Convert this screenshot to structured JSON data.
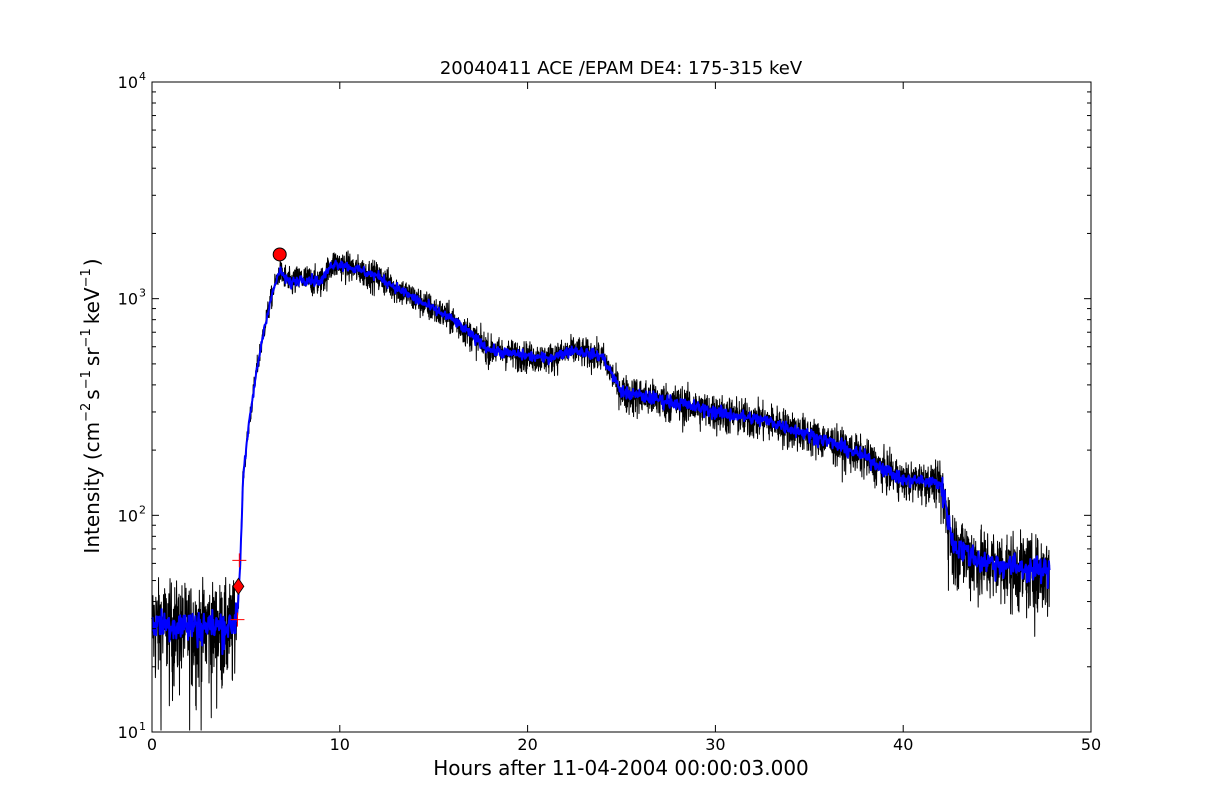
{
  "chart_data": {
    "type": "line",
    "title": "20040411 ACE /EPAM DE4: 175-315 keV",
    "xlabel": "Hours after 11-04-2004 00:00:03.000",
    "ylabel": {
      "prefix": "Intensity (cm",
      "exp1": "−2",
      "part2": "s",
      "exp2": "−1",
      "part3": "sr",
      "exp3": "−1",
      "part4": "keV",
      "exp4": "−1",
      "suffix": ")"
    },
    "xlim": [
      0,
      50
    ],
    "ylim": [
      10,
      10000
    ],
    "yscale": "log",
    "grid": false,
    "x_ticks": [
      {
        "value": 0,
        "label": "0"
      },
      {
        "value": 10,
        "label": "10"
      },
      {
        "value": 20,
        "label": "20"
      },
      {
        "value": 30,
        "label": "30"
      },
      {
        "value": 40,
        "label": "40"
      },
      {
        "value": 50,
        "label": "50"
      }
    ],
    "y_ticks": [
      {
        "value": 10,
        "base": "10",
        "exp": "1"
      },
      {
        "value": 100,
        "base": "10",
        "exp": "2"
      },
      {
        "value": 1000,
        "base": "10",
        "exp": "3"
      },
      {
        "value": 10000,
        "base": "10",
        "exp": "4"
      }
    ],
    "series": [
      {
        "color": "#000000",
        "style": "raw-noisy",
        "envelope": [
          [
            0,
            32
          ],
          [
            2,
            31
          ],
          [
            4.3,
            31
          ],
          [
            4.55,
            36
          ],
          [
            4.7,
            60
          ],
          [
            4.85,
            150
          ],
          [
            5.2,
            280
          ],
          [
            5.6,
            480
          ],
          [
            6.0,
            750
          ],
          [
            6.4,
            1050
          ],
          [
            6.8,
            1350
          ],
          [
            7.3,
            1180
          ],
          [
            8,
            1240
          ],
          [
            9,
            1200
          ],
          [
            9.6,
            1450
          ],
          [
            10,
            1450
          ],
          [
            12,
            1270
          ],
          [
            14,
            1000
          ],
          [
            16,
            800
          ],
          [
            18,
            580
          ],
          [
            19,
            560
          ],
          [
            21,
            530
          ],
          [
            22.5,
            580
          ],
          [
            24,
            540
          ],
          [
            25,
            370
          ],
          [
            28,
            330
          ],
          [
            30,
            300
          ],
          [
            33,
            270
          ],
          [
            36,
            220
          ],
          [
            38,
            185
          ],
          [
            40,
            145
          ],
          [
            41,
            145
          ],
          [
            42,
            140
          ],
          [
            42.3,
            110
          ],
          [
            42.6,
            75
          ],
          [
            44,
            62
          ],
          [
            46,
            58
          ],
          [
            47.8,
            55
          ]
        ]
      },
      {
        "color": "#0000ff",
        "style": "smoothed",
        "envelope": [
          [
            0,
            32
          ],
          [
            2,
            31
          ],
          [
            4.3,
            31
          ],
          [
            4.55,
            36
          ],
          [
            4.7,
            60
          ],
          [
            4.85,
            150
          ],
          [
            5.2,
            280
          ],
          [
            5.6,
            480
          ],
          [
            6.0,
            750
          ],
          [
            6.4,
            1050
          ],
          [
            6.8,
            1350
          ],
          [
            7.3,
            1180
          ],
          [
            8,
            1240
          ],
          [
            9,
            1200
          ],
          [
            9.6,
            1450
          ],
          [
            10,
            1450
          ],
          [
            12,
            1270
          ],
          [
            14,
            1000
          ],
          [
            16,
            800
          ],
          [
            18,
            580
          ],
          [
            19,
            560
          ],
          [
            21,
            530
          ],
          [
            22.5,
            580
          ],
          [
            24,
            540
          ],
          [
            25,
            370
          ],
          [
            28,
            330
          ],
          [
            30,
            300
          ],
          [
            33,
            270
          ],
          [
            36,
            220
          ],
          [
            38,
            185
          ],
          [
            40,
            145
          ],
          [
            41,
            145
          ],
          [
            42,
            140
          ],
          [
            42.3,
            110
          ],
          [
            42.6,
            75
          ],
          [
            44,
            62
          ],
          [
            46,
            58
          ],
          [
            47.8,
            55
          ]
        ]
      }
    ],
    "markers": [
      {
        "shape": "plus",
        "x": 4.55,
        "y": 33,
        "color": "#ff0000"
      },
      {
        "shape": "plus",
        "x": 4.65,
        "y": 62,
        "color": "#ff0000"
      },
      {
        "shape": "diamond",
        "x": 4.6,
        "y": 47,
        "color": "#ff0000"
      },
      {
        "shape": "circle",
        "x": 6.8,
        "y": 1600,
        "color": "#ff0000"
      }
    ]
  }
}
